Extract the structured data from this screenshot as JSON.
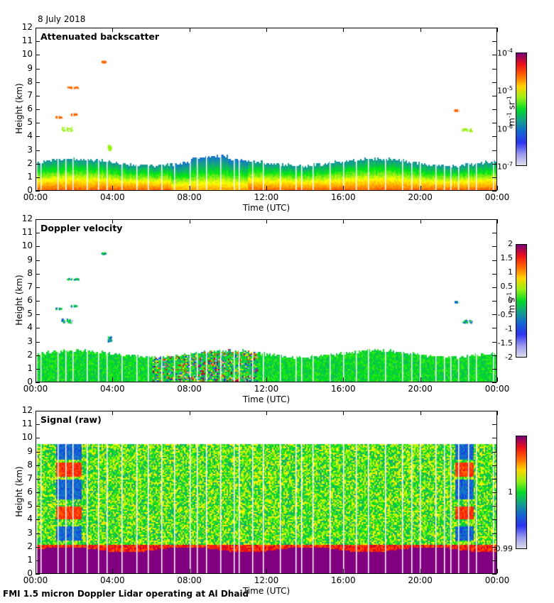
{
  "date": "8 July 2018",
  "footer": "FMI 1.5 micron Doppler Lidar operating at Al Dhaid",
  "chart_data": [
    {
      "type": "heatmap",
      "title": "Attenuated backscatter",
      "xlabel": "Time (UTC)",
      "ylabel": "Height (km)",
      "xticks": [
        "00:00",
        "04:00",
        "08:00",
        "12:00",
        "16:00",
        "20:00",
        "00:00"
      ],
      "yticks": [
        "0",
        "1",
        "2",
        "3",
        "4",
        "5",
        "6",
        "7",
        "8",
        "9",
        "10",
        "11",
        "12"
      ],
      "ylim": [
        0,
        12
      ],
      "xlim_hours": [
        0,
        24
      ],
      "colorbar": {
        "label": "m-1 sr-1",
        "label_base": "m",
        "label_exp1": "-1",
        "label_mid": " sr",
        "label_exp2": "-1",
        "ticks": [
          {
            "base": "10",
            "exp": "-4"
          },
          {
            "base": "10",
            "exp": "-5"
          },
          {
            "base": "10",
            "exp": "-6"
          },
          {
            "base": "10",
            "exp": "-7"
          }
        ],
        "scale": "log",
        "range": [
          1e-07,
          0.0001
        ]
      },
      "features": {
        "boundary_layer_top_km": 2.0,
        "cloud_layers_km": [
          4.4,
          5.5,
          7.6,
          9.5,
          3.0
        ]
      }
    },
    {
      "type": "heatmap",
      "title": "Doppler velocity",
      "xlabel": "Time (UTC)",
      "ylabel": "Height (km)",
      "xticks": [
        "00:00",
        "04:00",
        "08:00",
        "12:00",
        "16:00",
        "20:00",
        "00:00"
      ],
      "yticks": [
        "0",
        "1",
        "2",
        "3",
        "4",
        "5",
        "6",
        "7",
        "8",
        "9",
        "10",
        "11",
        "12"
      ],
      "ylim": [
        0,
        12
      ],
      "xlim_hours": [
        0,
        24
      ],
      "colorbar": {
        "label": "m s-1",
        "label_base": "m s",
        "label_exp": "-1",
        "ticks": [
          "2",
          "1.5",
          "1",
          "0.5",
          "0",
          "-0.5",
          "-1",
          "-1.5",
          "-2"
        ],
        "range": [
          -2,
          2
        ]
      }
    },
    {
      "type": "heatmap",
      "title": "Signal (raw)",
      "xlabel": "Time (UTC)",
      "ylabel": "Height (km)",
      "xticks": [
        "00:00",
        "04:00",
        "08:00",
        "12:00",
        "16:00",
        "20:00",
        "00:00"
      ],
      "yticks": [
        "0",
        "1",
        "2",
        "3",
        "4",
        "5",
        "6",
        "7",
        "8",
        "9",
        "10",
        "11",
        "12"
      ],
      "ylim": [
        0,
        12
      ],
      "xlim_hours": [
        0,
        24
      ],
      "colorbar": {
        "ticks": [
          "1",
          "0.99"
        ],
        "range": [
          0.99,
          1.01
        ]
      },
      "features": {
        "data_top_km": 9.6
      }
    }
  ]
}
